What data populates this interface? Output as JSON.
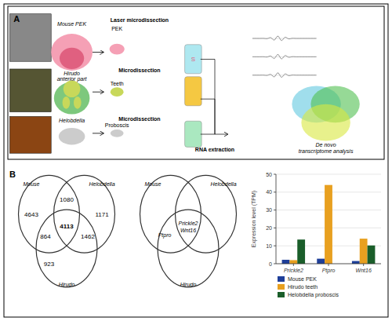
{
  "chart_data": [
    {
      "type": "diagram",
      "title": "A",
      "annotations": [
        "Mouse PEK",
        "PEK",
        "Laser microdissection",
        "S",
        "Hirudo\nanterior part",
        "Teeth",
        "Microdissection",
        "Helobdella",
        "Proboscis",
        "Microdissection",
        "RNA extraction",
        "De novo\ntranscriptome analysis"
      ]
    },
    {
      "type": "venn",
      "title": "B",
      "sets": [
        "Mouse",
        "Helobdella",
        "Hirudo"
      ],
      "regions": [
        {
          "sets": [
            "Mouse"
          ],
          "value": 4643
        },
        {
          "sets": [
            "Helobdella"
          ],
          "value": 1171
        },
        {
          "sets": [
            "Hirudo"
          ],
          "value": 923
        },
        {
          "sets": [
            "Mouse",
            "Helobdella"
          ],
          "value": 1080
        },
        {
          "sets": [
            "Mouse",
            "Hirudo"
          ],
          "value": 864
        },
        {
          "sets": [
            "Helobdella",
            "Hirudo"
          ],
          "value": 1462
        },
        {
          "sets": [
            "Mouse",
            "Helobdella",
            "Hirudo"
          ],
          "value": 4113
        }
      ]
    },
    {
      "type": "venn",
      "sets": [
        "Mouse",
        "Helobdella",
        "Hirudo"
      ],
      "regions": [
        {
          "sets": [
            "Mouse",
            "Helobdella",
            "Hirudo"
          ],
          "labels": [
            "Prickle2",
            "Wnt16"
          ]
        },
        {
          "sets": [
            "Mouse",
            "Hirudo"
          ],
          "labels": [
            "Ptpro"
          ]
        }
      ]
    },
    {
      "type": "bar",
      "categories": [
        "Prickle2",
        "Ptpro",
        "Wnt16"
      ],
      "series": [
        {
          "name": "Mouse PEK",
          "color": "#1f3f99",
          "values": [
            2.2,
            2.8,
            1.5
          ]
        },
        {
          "name": "Hirudo teeth",
          "color": "#e8a020",
          "values": [
            2.0,
            44.0,
            14.0
          ]
        },
        {
          "name": "Helobdella proboscis",
          "color": "#1a5e2a",
          "values": [
            13.5,
            0,
            10.2
          ]
        }
      ],
      "ylabel": "Expression level (TPM)",
      "ylim": [
        0,
        50
      ],
      "yticks": [
        0,
        10,
        20,
        30,
        40,
        50
      ],
      "grid": true,
      "legend": "bottom"
    }
  ]
}
